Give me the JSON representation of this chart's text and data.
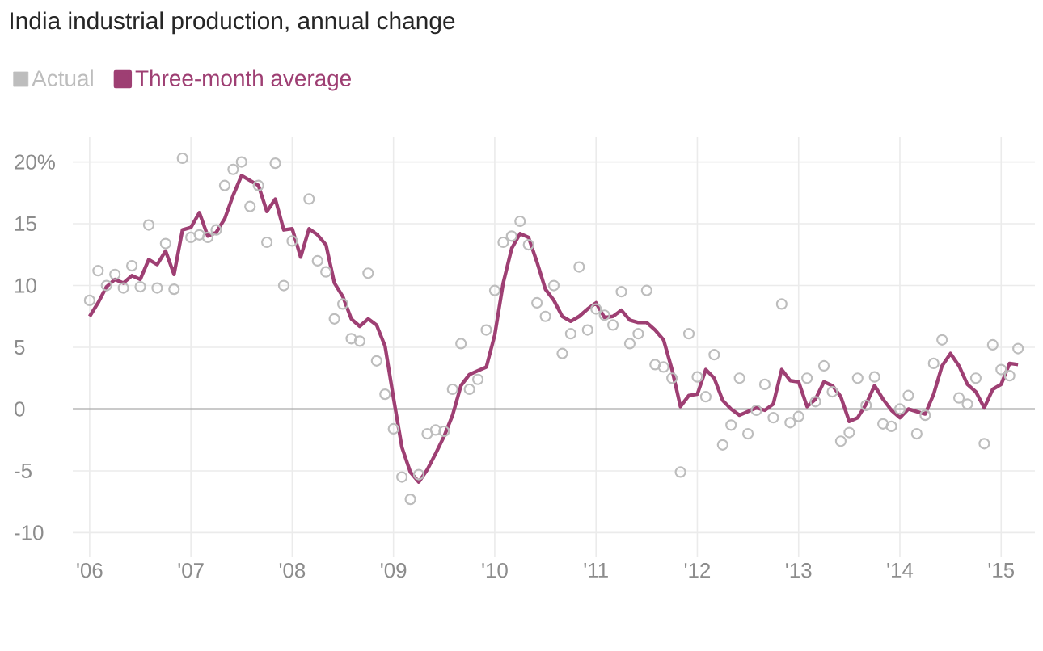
{
  "chart_data": {
    "type": "line",
    "title": "India industrial production, annual change",
    "x": [
      "2006-01",
      "2006-02",
      "2006-03",
      "2006-04",
      "2006-05",
      "2006-06",
      "2006-07",
      "2006-08",
      "2006-09",
      "2006-10",
      "2006-11",
      "2006-12",
      "2007-01",
      "2007-02",
      "2007-03",
      "2007-04",
      "2007-05",
      "2007-06",
      "2007-07",
      "2007-08",
      "2007-09",
      "2007-10",
      "2007-11",
      "2007-12",
      "2008-01",
      "2008-02",
      "2008-03",
      "2008-04",
      "2008-05",
      "2008-06",
      "2008-07",
      "2008-08",
      "2008-09",
      "2008-10",
      "2008-11",
      "2008-12",
      "2009-01",
      "2009-02",
      "2009-03",
      "2009-04",
      "2009-05",
      "2009-06",
      "2009-07",
      "2009-08",
      "2009-09",
      "2009-10",
      "2009-11",
      "2009-12",
      "2010-01",
      "2010-02",
      "2010-03",
      "2010-04",
      "2010-05",
      "2010-06",
      "2010-07",
      "2010-08",
      "2010-09",
      "2010-10",
      "2010-11",
      "2010-12",
      "2011-01",
      "2011-02",
      "2011-03",
      "2011-04",
      "2011-05",
      "2011-06",
      "2011-07",
      "2011-08",
      "2011-09",
      "2011-10",
      "2011-11",
      "2011-12",
      "2012-01",
      "2012-02",
      "2012-03",
      "2012-04",
      "2012-05",
      "2012-06",
      "2012-07",
      "2012-08",
      "2012-09",
      "2012-10",
      "2012-11",
      "2012-12",
      "2013-01",
      "2013-02",
      "2013-03",
      "2013-04",
      "2013-05",
      "2013-06",
      "2013-07",
      "2013-08",
      "2013-09",
      "2013-10",
      "2013-11",
      "2013-12",
      "2014-01",
      "2014-02",
      "2014-03",
      "2014-04",
      "2014-05",
      "2014-06",
      "2014-07",
      "2014-08",
      "2014-09",
      "2014-10",
      "2014-11",
      "2014-12",
      "2015-01",
      "2015-02",
      "2015-03"
    ],
    "series": [
      {
        "name": "Actual",
        "type": "scatter",
        "marker": "circle",
        "color": "#bdbdbd",
        "values": [
          8.8,
          11.2,
          10.0,
          10.9,
          9.8,
          11.6,
          9.9,
          14.9,
          9.8,
          13.4,
          9.7,
          20.3,
          13.9,
          14.1,
          13.9,
          14.5,
          18.1,
          19.4,
          20.0,
          16.4,
          18.1,
          13.5,
          19.9,
          10.0,
          13.6,
          null,
          17.0,
          12.0,
          11.1,
          7.3,
          8.5,
          5.7,
          5.5,
          11.0,
          3.9,
          1.2,
          -1.6,
          -5.5,
          -7.3,
          -5.3,
          -2.0,
          -1.7,
          -1.8,
          1.6,
          5.3,
          1.6,
          2.4,
          6.4,
          9.6,
          13.5,
          14.0,
          15.2,
          13.3,
          8.6,
          7.5,
          10.0,
          4.5,
          6.1,
          11.5,
          6.4,
          8.1,
          7.6,
          6.8,
          9.5,
          5.3,
          6.1,
          9.6,
          3.6,
          3.4,
          2.5,
          -5.1,
          6.1,
          2.6,
          1.0,
          4.4,
          -2.9,
          -1.3,
          2.5,
          -2.0,
          -0.1,
          2.0,
          -0.7,
          8.5,
          -1.1,
          -0.6,
          2.5,
          0.6,
          3.5,
          1.4,
          -2.6,
          -1.9,
          2.5,
          0.3,
          2.6,
          -1.2,
          -1.4,
          0.0,
          1.1,
          -2.0,
          -0.5,
          3.7,
          5.6,
          null,
          0.9,
          0.4,
          2.5,
          -2.8,
          5.2,
          3.2,
          2.7,
          4.9
        ]
      },
      {
        "name": "Three-month average",
        "marker": "none",
        "line_style": "solid",
        "color": "#9e3f73",
        "values": [
          7.5,
          8.6,
          9.9,
          10.5,
          10.2,
          10.8,
          10.5,
          12.1,
          11.7,
          12.8,
          10.9,
          14.5,
          14.7,
          15.9,
          14.0,
          14.3,
          15.4,
          17.3,
          18.9,
          18.5,
          18.1,
          16.0,
          17.0,
          14.5,
          14.6,
          12.3,
          14.6,
          14.1,
          13.3,
          10.2,
          9.1,
          7.3,
          6.7,
          7.3,
          6.8,
          5.1,
          0.9,
          -3.1,
          -5.1,
          -5.9,
          -4.9,
          -3.6,
          -2.2,
          -0.5,
          1.9,
          2.8,
          3.1,
          3.4,
          6.0,
          10.2,
          13.0,
          14.2,
          13.9,
          11.9,
          9.7,
          8.8,
          7.5,
          7.1,
          7.5,
          8.1,
          8.6,
          7.4,
          7.5,
          8.0,
          7.2,
          7.0,
          7.0,
          6.4,
          5.6,
          3.2,
          0.2,
          1.1,
          1.2,
          3.2,
          2.5,
          0.7,
          0.0,
          -0.5,
          -0.2,
          0.1,
          -0.1,
          0.4,
          3.2,
          2.3,
          2.2,
          0.2,
          0.8,
          2.2,
          1.9,
          1.0,
          -1.0,
          -0.7,
          0.4,
          1.9,
          0.8,
          -0.1,
          -0.7,
          0.0,
          -0.2,
          -0.4,
          1.2,
          3.5,
          4.5,
          3.5,
          2.0,
          1.4,
          0.1,
          1.6,
          2.0,
          3.7,
          3.6
        ]
      }
    ],
    "xlim": [
      "2005-11",
      "2015-05"
    ],
    "xticks": [
      {
        "value": "2006-01",
        "label": "'06"
      },
      {
        "value": "2007-01",
        "label": "'07"
      },
      {
        "value": "2008-01",
        "label": "'08"
      },
      {
        "value": "2009-01",
        "label": "'09"
      },
      {
        "value": "2010-01",
        "label": "'10"
      },
      {
        "value": "2011-01",
        "label": "'11"
      },
      {
        "value": "2012-01",
        "label": "'12"
      },
      {
        "value": "2013-01",
        "label": "'13"
      },
      {
        "value": "2014-01",
        "label": "'14"
      },
      {
        "value": "2015-01",
        "label": "'15"
      }
    ],
    "ylim": [
      -12,
      22
    ],
    "yticks": [
      -10,
      -5,
      0,
      5,
      10,
      15,
      {
        "value": 20,
        "label": "20%"
      }
    ],
    "ref_lines": [
      {
        "axis": "y",
        "value": 0,
        "color": "#999999"
      }
    ],
    "grid": true,
    "legend": "top left"
  }
}
